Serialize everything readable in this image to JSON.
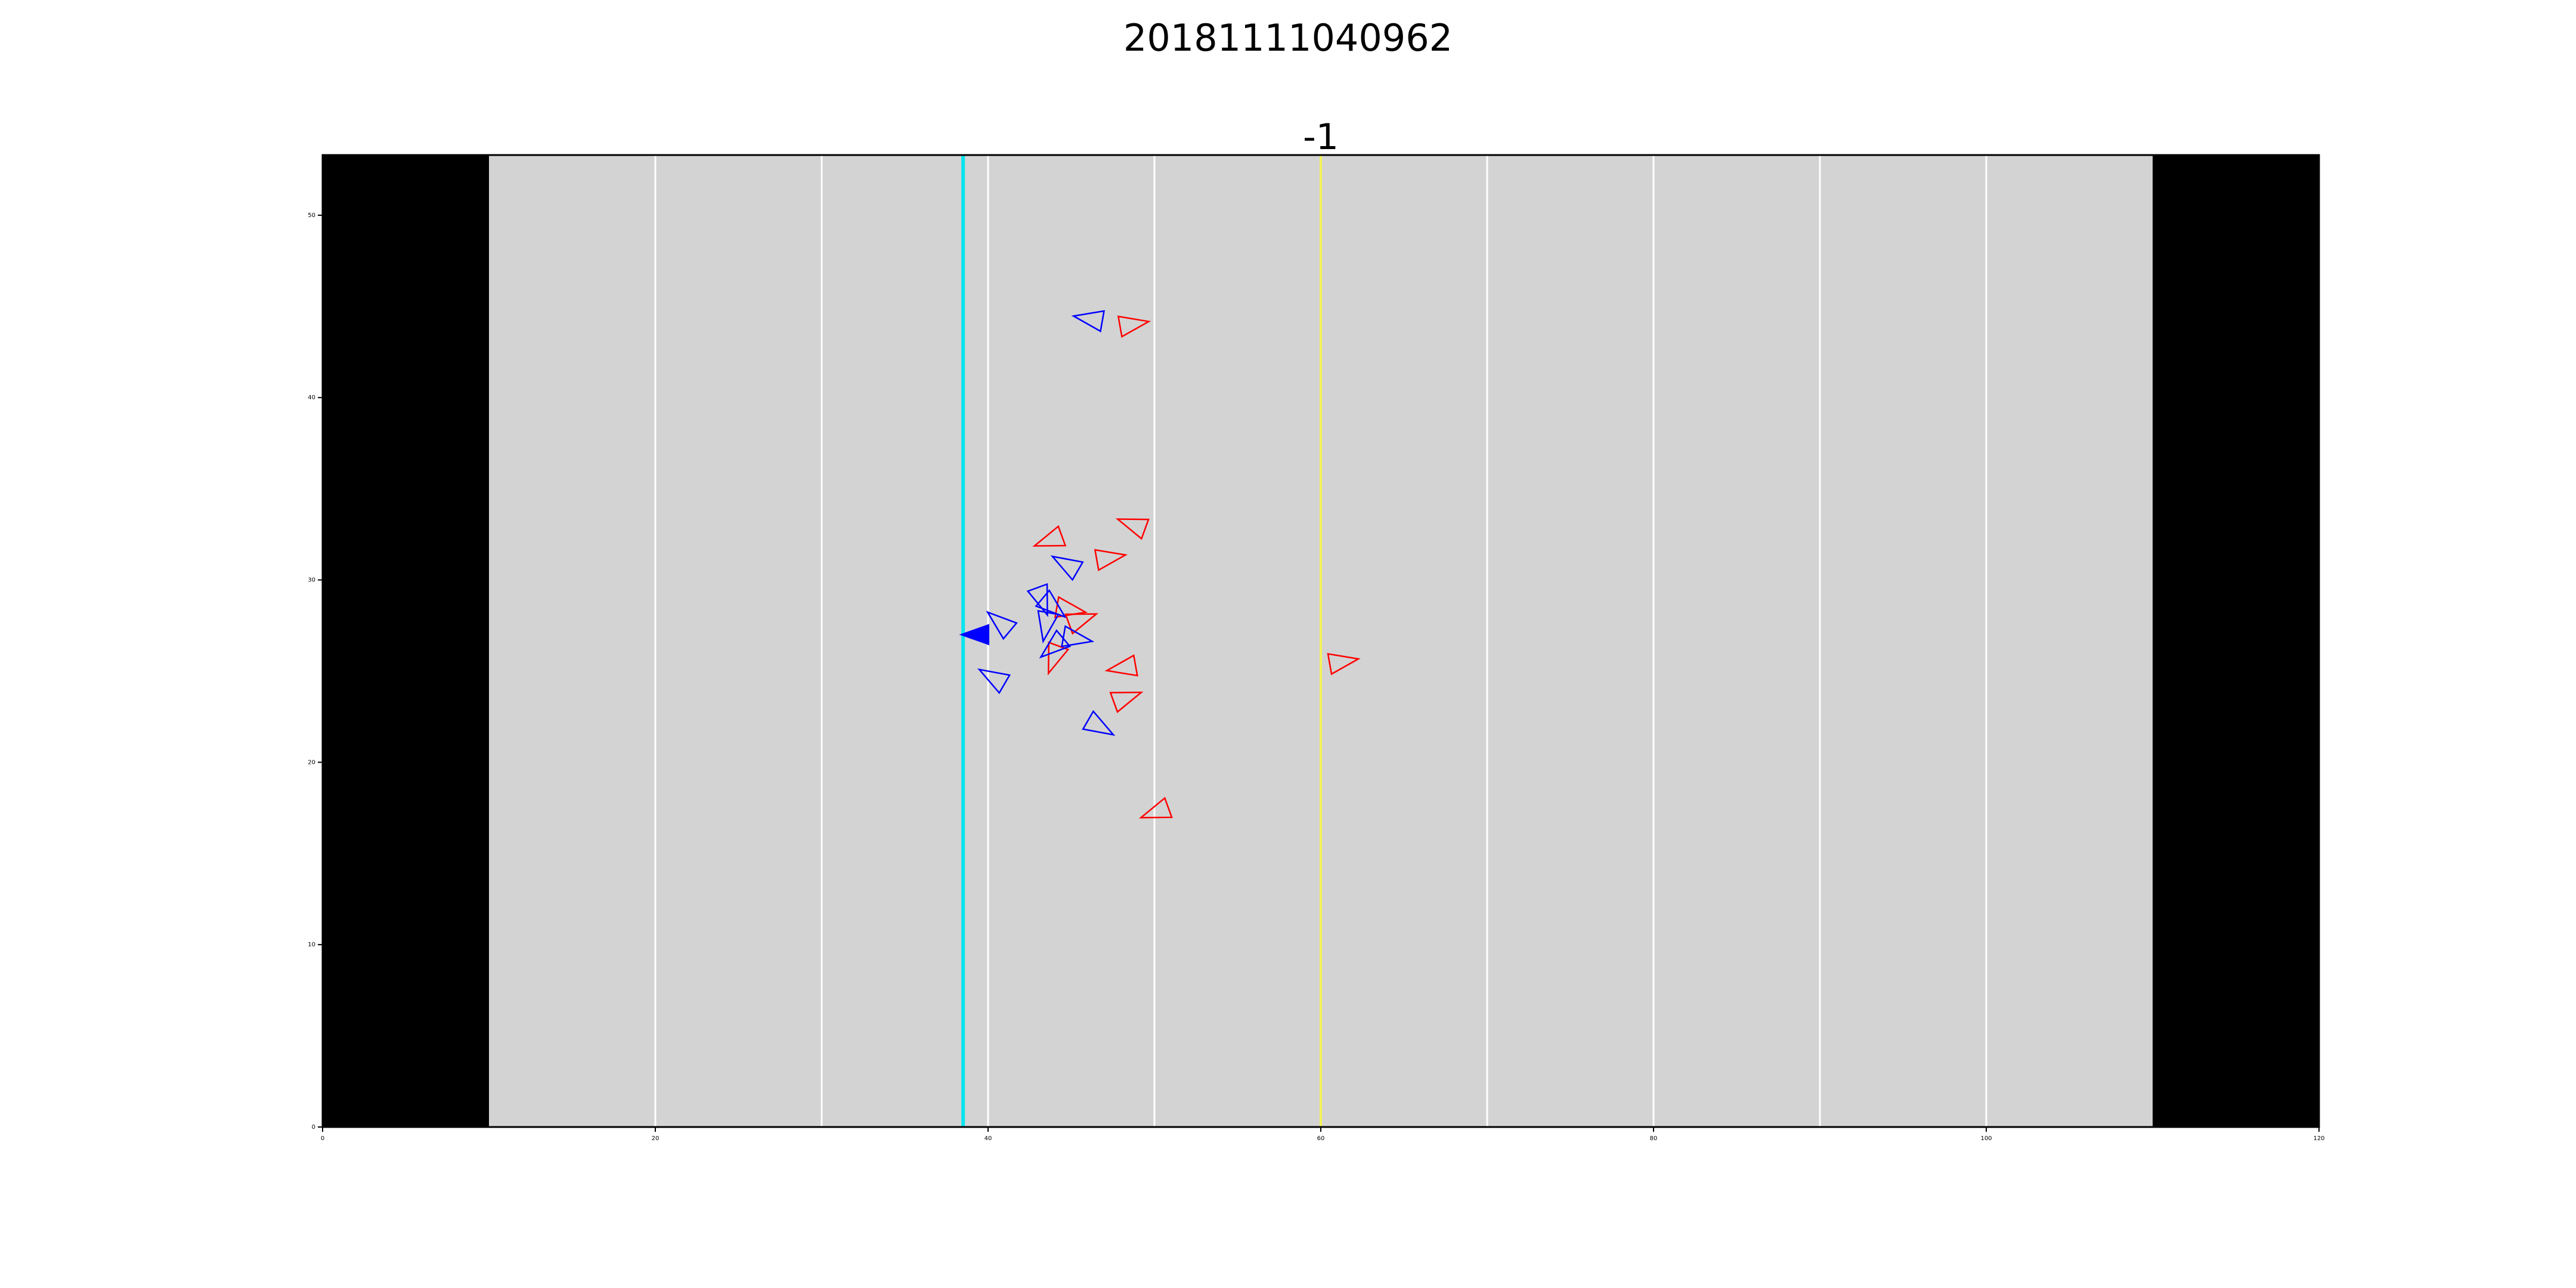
{
  "figure": {
    "suptitle": "20181111040962",
    "title": "-1"
  },
  "chart_data": {
    "type": "scatter",
    "marker": "triangle",
    "xlim": [
      0,
      120
    ],
    "ylim": [
      0,
      53.3
    ],
    "xticks": [
      0,
      20,
      40,
      60,
      80,
      100,
      120
    ],
    "yticks": [
      0,
      10,
      20,
      30,
      40,
      50
    ],
    "grid": false,
    "field": {
      "background_color": "#d3d3d3",
      "endzone_color": "#000000",
      "endzones": [
        [
          0,
          10
        ],
        [
          110,
          120
        ]
      ],
      "yard_lines": [
        20,
        30,
        40,
        50,
        60,
        70,
        80,
        90,
        100
      ],
      "yard_line_color": "#ffffff",
      "line_of_scrimmage": 38.5,
      "line_of_scrimmage_color": "#00e5ee",
      "first_down_line": 60,
      "first_down_color": "#f2f25a"
    },
    "series": [
      {
        "color": "#ff0000",
        "filled": false,
        "points": [
          {
            "x": 48.6,
            "y": 44.0,
            "dir": 10
          },
          {
            "x": 43.8,
            "y": 32.2,
            "dir": 200
          },
          {
            "x": 48.8,
            "y": 33.0,
            "dir": 160
          },
          {
            "x": 47.2,
            "y": 31.2,
            "dir": 10
          },
          {
            "x": 44.8,
            "y": 28.4,
            "dir": 350
          },
          {
            "x": 45.5,
            "y": 27.8,
            "dir": 20
          },
          {
            "x": 44.0,
            "y": 25.8,
            "dir": 250
          },
          {
            "x": 48.2,
            "y": 25.2,
            "dir": 190
          },
          {
            "x": 48.2,
            "y": 23.5,
            "dir": 20
          },
          {
            "x": 61.2,
            "y": 25.5,
            "dir": 10
          },
          {
            "x": 50.2,
            "y": 17.3,
            "dir": 200
          }
        ]
      },
      {
        "color": "#0000ff",
        "filled": false,
        "points": [
          {
            "x": 46.2,
            "y": 44.3,
            "dir": 170
          },
          {
            "x": 44.8,
            "y": 30.8,
            "dir": 150
          },
          {
            "x": 43.2,
            "y": 29.0,
            "dir": 290
          },
          {
            "x": 43.8,
            "y": 28.6,
            "dir": 320
          },
          {
            "x": 43.5,
            "y": 27.6,
            "dir": 260
          },
          {
            "x": 45.2,
            "y": 26.8,
            "dir": 350
          },
          {
            "x": 44.0,
            "y": 26.4,
            "dir": 220
          },
          {
            "x": 40.8,
            "y": 27.6,
            "dir": 140
          },
          {
            "x": 40.4,
            "y": 24.6,
            "dir": 150
          },
          {
            "x": 46.6,
            "y": 22.0,
            "dir": 330
          }
        ]
      },
      {
        "color": "#0000ff",
        "filled": true,
        "points": [
          {
            "x": 39.4,
            "y": 27.0,
            "dir": 180
          }
        ]
      }
    ]
  }
}
